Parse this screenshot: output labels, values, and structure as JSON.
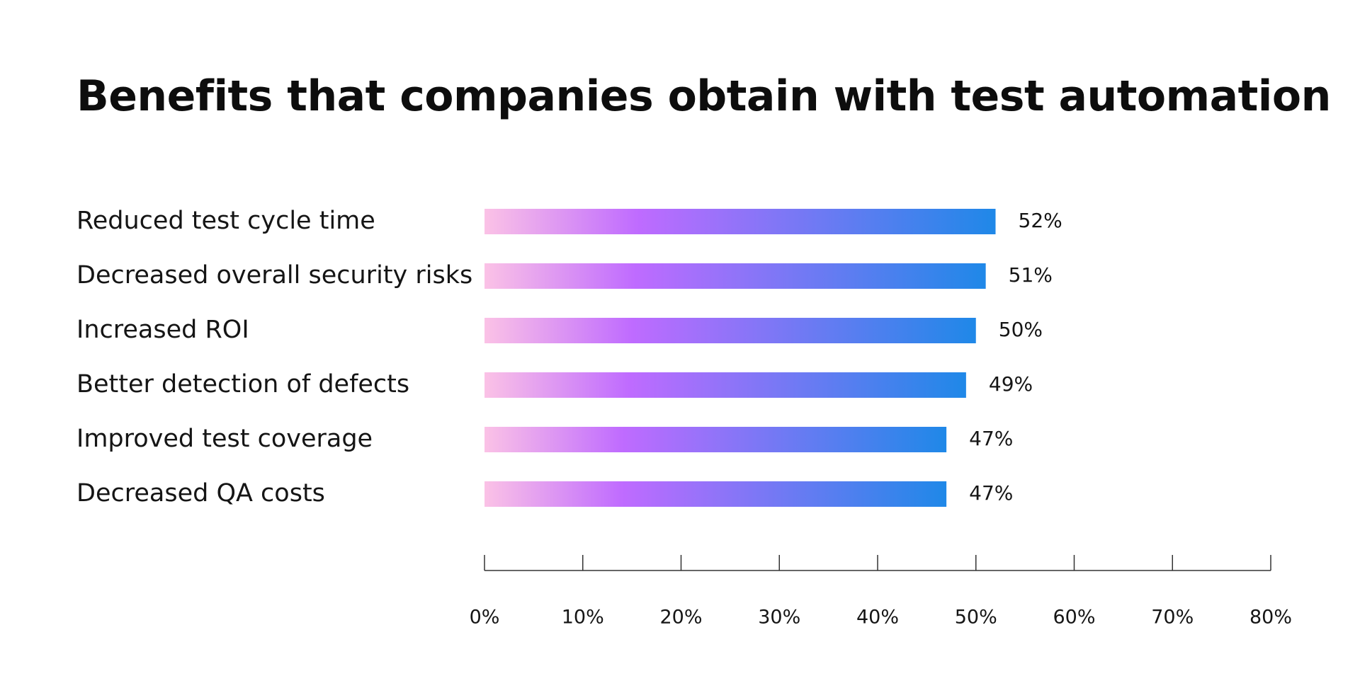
{
  "chart_data": {
    "type": "bar",
    "orientation": "horizontal",
    "title": "Benefits that companies obtain with test automation",
    "categories": [
      "Reduced test cycle time",
      "Decreased overall security risks",
      "Increased ROI",
      "Better detection of defects",
      "Improved test coverage",
      "Decreased QA costs"
    ],
    "values": [
      52,
      51,
      50,
      49,
      47,
      47
    ],
    "value_labels": [
      "52%",
      "51%",
      "50%",
      "49%",
      "47%",
      "47%"
    ],
    "xlim": [
      0,
      80
    ],
    "x_ticks": [
      0,
      10,
      20,
      30,
      40,
      50,
      60,
      70,
      80
    ],
    "x_tick_labels": [
      "0%",
      "10%",
      "20%",
      "30%",
      "40%",
      "50%",
      "60%",
      "70%",
      "80%"
    ],
    "grid": false,
    "legend": "none",
    "colors": {
      "gradient_start": "#FBC2E6",
      "gradient_mid": "#BF6BFF",
      "gradient_end": "#1F88E8",
      "text": "#151515",
      "axis": "#333333"
    }
  }
}
